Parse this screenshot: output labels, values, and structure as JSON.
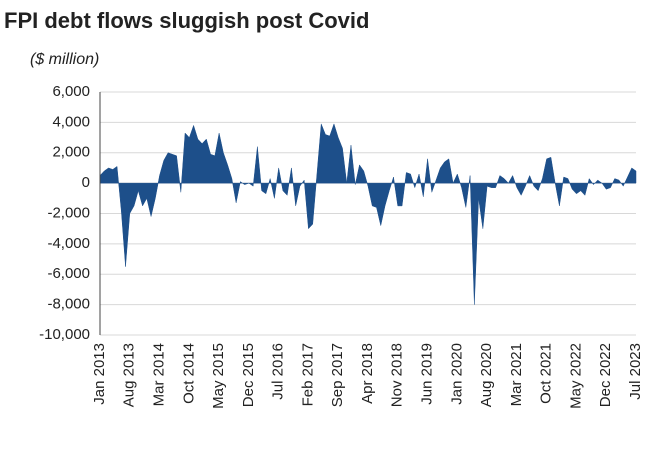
{
  "chart_data": {
    "type": "area",
    "title": "FPI debt flows sluggish post Covid",
    "subtitle": "($ million)",
    "color": "#1d4f8a",
    "grid": true,
    "ylim": [
      -10000,
      6000
    ],
    "yticks": [
      {
        "value": 6000,
        "label": "6,000"
      },
      {
        "value": 4000,
        "label": "4,000"
      },
      {
        "value": 2000,
        "label": "2,000"
      },
      0,
      {
        "value": -2000,
        "label": "-2,000"
      },
      {
        "value": -4000,
        "label": "-4,000"
      },
      {
        "value": -6000,
        "label": "-6,000"
      },
      {
        "value": -8000,
        "label": "-8,000"
      },
      {
        "value": -10000,
        "label": "-10,000"
      }
    ],
    "categories": [
      "Jan 2013",
      null,
      null,
      null,
      null,
      null,
      null,
      "Aug 2013",
      null,
      null,
      null,
      null,
      null,
      null,
      "Mar 2014",
      null,
      null,
      null,
      null,
      null,
      null,
      "Oct 2014",
      null,
      null,
      null,
      null,
      null,
      null,
      "May 2015",
      null,
      null,
      null,
      null,
      null,
      null,
      "Dec 2015",
      null,
      null,
      null,
      null,
      null,
      null,
      "Jul 2016",
      null,
      null,
      null,
      null,
      null,
      null,
      "Feb 2017",
      null,
      null,
      null,
      null,
      null,
      null,
      "Sep 2017",
      null,
      null,
      null,
      null,
      null,
      null,
      "Apr 2018",
      null,
      null,
      null,
      null,
      null,
      null,
      "Nov 2018",
      null,
      null,
      null,
      null,
      null,
      null,
      "Jun 2019",
      null,
      null,
      null,
      null,
      null,
      null,
      "Jan 2020",
      null,
      null,
      null,
      null,
      null,
      null,
      "Aug 2020",
      null,
      null,
      null,
      null,
      null,
      null,
      "Mar 2021",
      null,
      null,
      null,
      null,
      null,
      null,
      "Oct 2021",
      null,
      null,
      null,
      null,
      null,
      null,
      "May 2022",
      null,
      null,
      null,
      null,
      null,
      null,
      "Dec 2022",
      null,
      null,
      null,
      null,
      null,
      null,
      "Jul 2023"
    ],
    "values": [
      500,
      800,
      1000,
      900,
      1100,
      -1800,
      -5500,
      -2000,
      -1500,
      -500,
      -1500,
      -1000,
      -2200,
      -1000,
      500,
      1500,
      2000,
      1900,
      1800,
      -600,
      3300,
      3000,
      3800,
      2900,
      2600,
      2900,
      1900,
      1800,
      3300,
      2000,
      1200,
      300,
      -1300,
      100,
      -100,
      0,
      -200,
      2400,
      -500,
      -700,
      300,
      -1000,
      1000,
      -500,
      -800,
      1000,
      -1500,
      -200,
      200,
      -3000,
      -2700,
      600,
      3900,
      3200,
      3100,
      3900,
      3000,
      2300,
      0,
      2500,
      -100,
      1200,
      800,
      -200,
      -1500,
      -1600,
      -2800,
      -1500,
      -500,
      400,
      -1500,
      -1500,
      700,
      600,
      -300,
      600,
      -900,
      1600,
      -600,
      200,
      1000,
      1400,
      1600,
      0,
      600,
      -300,
      -1600,
      500,
      -8000,
      -1000,
      -3000,
      -200,
      -300,
      -300,
      500,
      300,
      0,
      500,
      -300,
      -800,
      -200,
      500,
      -200,
      -500,
      300,
      1600,
      1700,
      0,
      -1500,
      400,
      300,
      -400,
      -700,
      -500,
      -800,
      300,
      -100,
      200,
      0,
      -400,
      -300,
      300,
      200,
      -200,
      400,
      1000,
      800
    ]
  }
}
